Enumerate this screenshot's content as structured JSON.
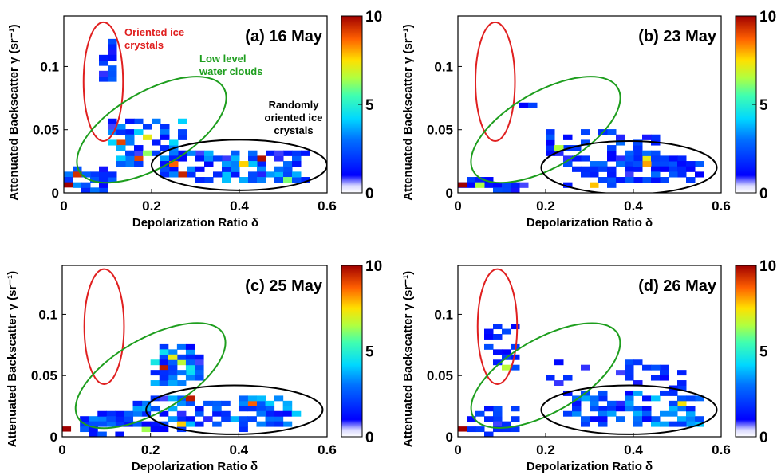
{
  "figure": {
    "colorbar_ticks": [
      "10",
      "5",
      "0"
    ],
    "colors": {
      "oriented_ellipse": "#e02020",
      "water_ellipse": "#1e9e1e",
      "random_ellipse": "#000000",
      "axes": "#000000"
    }
  },
  "chart_data": [
    {
      "type": "heatmap",
      "panel_label": "(a) 16 May",
      "xlabel": "Depolarization Ratio δ",
      "ylabel": "Attenuated Backscatter γ (sr⁻¹)",
      "xlim": [
        0,
        0.6
      ],
      "ylim": [
        0,
        0.14
      ],
      "xticks": [
        "0",
        "0.2",
        "0.4",
        "0.6"
      ],
      "yticks": [
        "0",
        "0.05",
        "0.1"
      ],
      "color_range": [
        0,
        10
      ],
      "annotations": [
        "Oriented ice crystals",
        "Low level water clouds",
        "Randomly oriented ice crystals"
      ],
      "ellipses": [
        {
          "name": "oriented",
          "cx": 0.09,
          "cy": 0.088,
          "rx": 0.045,
          "ry": 0.047,
          "angle": 0
        },
        {
          "name": "water",
          "cx": 0.2,
          "cy": 0.05,
          "rx": 0.19,
          "ry": 0.03,
          "angle": -30
        },
        {
          "name": "random",
          "cx": 0.4,
          "cy": 0.022,
          "rx": 0.2,
          "ry": 0.02,
          "angle": 0
        }
      ]
    },
    {
      "type": "heatmap",
      "panel_label": "(b) 23 May",
      "xlabel": "Depolarization Ratio δ",
      "ylabel": "Attenuated Backscatter γ (sr⁻¹)",
      "xlim": [
        0,
        0.6
      ],
      "ylim": [
        0,
        0.14
      ],
      "xticks": [
        "0",
        "0.2",
        "0.4",
        "0.6"
      ],
      "yticks": [
        "0",
        "0.05",
        "0.1"
      ],
      "color_range": [
        0,
        10
      ],
      "annotations": [],
      "ellipses": [
        {
          "name": "oriented",
          "cx": 0.085,
          "cy": 0.088,
          "rx": 0.045,
          "ry": 0.047,
          "angle": 0
        },
        {
          "name": "water",
          "cx": 0.2,
          "cy": 0.05,
          "rx": 0.19,
          "ry": 0.03,
          "angle": -30
        },
        {
          "name": "random",
          "cx": 0.39,
          "cy": 0.02,
          "rx": 0.2,
          "ry": 0.021,
          "angle": 0
        }
      ]
    },
    {
      "type": "heatmap",
      "panel_label": "(c) 25 May",
      "xlabel": "Depolarization Ratio δ",
      "ylabel": "Attenuated Backscatter γ (sr⁻¹)",
      "xlim": [
        0,
        0.6
      ],
      "ylim": [
        0,
        0.14
      ],
      "xticks": [
        "0",
        "0.2",
        "0.4",
        "0.6"
      ],
      "yticks": [
        "0",
        "0.05",
        "0.1"
      ],
      "color_range": [
        0,
        10
      ],
      "annotations": [],
      "ellipses": [
        {
          "name": "oriented",
          "cx": 0.095,
          "cy": 0.09,
          "rx": 0.045,
          "ry": 0.047,
          "angle": 0
        },
        {
          "name": "water",
          "cx": 0.2,
          "cy": 0.05,
          "rx": 0.19,
          "ry": 0.03,
          "angle": -30
        },
        {
          "name": "random",
          "cx": 0.39,
          "cy": 0.022,
          "rx": 0.2,
          "ry": 0.02,
          "angle": 0
        }
      ]
    },
    {
      "type": "heatmap",
      "panel_label": "(d) 26 May",
      "xlabel": "Depolarization Ratio δ",
      "ylabel": "Attenuated Backscatter γ (sr⁻¹)",
      "xlim": [
        0,
        0.6
      ],
      "ylim": [
        0,
        0.14
      ],
      "xticks": [
        "0",
        "0.2",
        "0.4",
        "0.6"
      ],
      "yticks": [
        "0",
        "0.05",
        "0.1"
      ],
      "color_range": [
        0,
        10
      ],
      "annotations": [],
      "ellipses": [
        {
          "name": "oriented",
          "cx": 0.09,
          "cy": 0.09,
          "rx": 0.045,
          "ry": 0.047,
          "angle": 0
        },
        {
          "name": "water",
          "cx": 0.2,
          "cy": 0.05,
          "rx": 0.19,
          "ry": 0.03,
          "angle": -30
        },
        {
          "name": "random",
          "cx": 0.39,
          "cy": 0.022,
          "rx": 0.2,
          "ry": 0.02,
          "angle": 0
        }
      ]
    }
  ]
}
